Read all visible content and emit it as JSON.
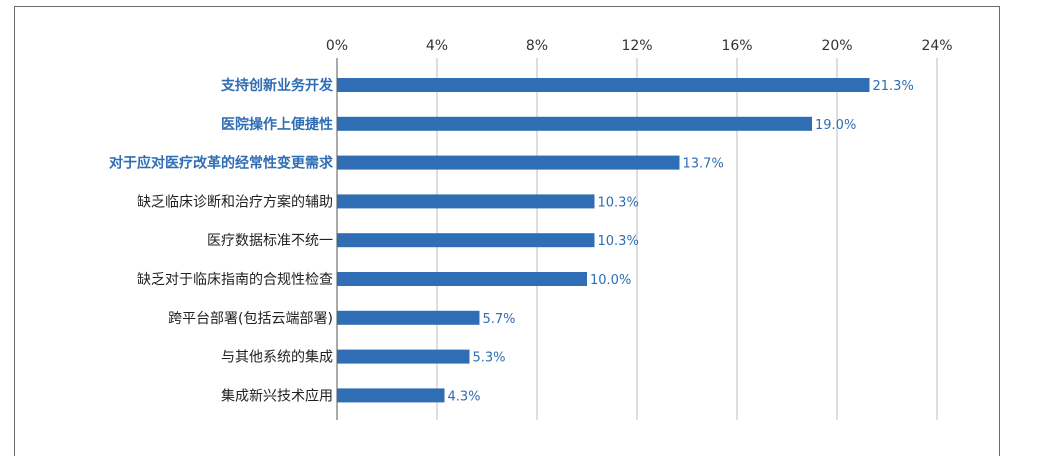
{
  "chart_data": {
    "type": "bar",
    "orientation": "horizontal",
    "title": "",
    "xlabel": "",
    "ylabel": "",
    "xlim": [
      0,
      24
    ],
    "x_ticks": [
      "0%",
      "4%",
      "8%",
      "12%",
      "16%",
      "20%",
      "24%"
    ],
    "x_tick_values": [
      0,
      4,
      8,
      12,
      16,
      20,
      24
    ],
    "grid": "vertical",
    "categories": [
      "支持创新业务开发",
      "医院操作上便捷性",
      "对于应对医疗改革的经常性变更需求",
      "缺乏临床诊断和治疗方案的辅助",
      "医疗数据标准不统一",
      "缺乏对于临床指南的合规性检查",
      "跨平台部署(包括云端部署)",
      "与其他系统的集成",
      "集成新兴技术应用"
    ],
    "values": [
      21.3,
      19.0,
      13.7,
      10.3,
      10.3,
      10.0,
      5.7,
      5.3,
      4.3
    ],
    "value_labels": [
      "21.3%",
      "19.0%",
      "13.7%",
      "10.3%",
      "10.3%",
      "10.0%",
      "5.7%",
      "5.3%",
      "4.3%"
    ],
    "highlighted": [
      true,
      true,
      true,
      false,
      false,
      false,
      false,
      false,
      false
    ],
    "bar_color": "#2f6db5",
    "highlight_label_color": "#2f6db5"
  }
}
